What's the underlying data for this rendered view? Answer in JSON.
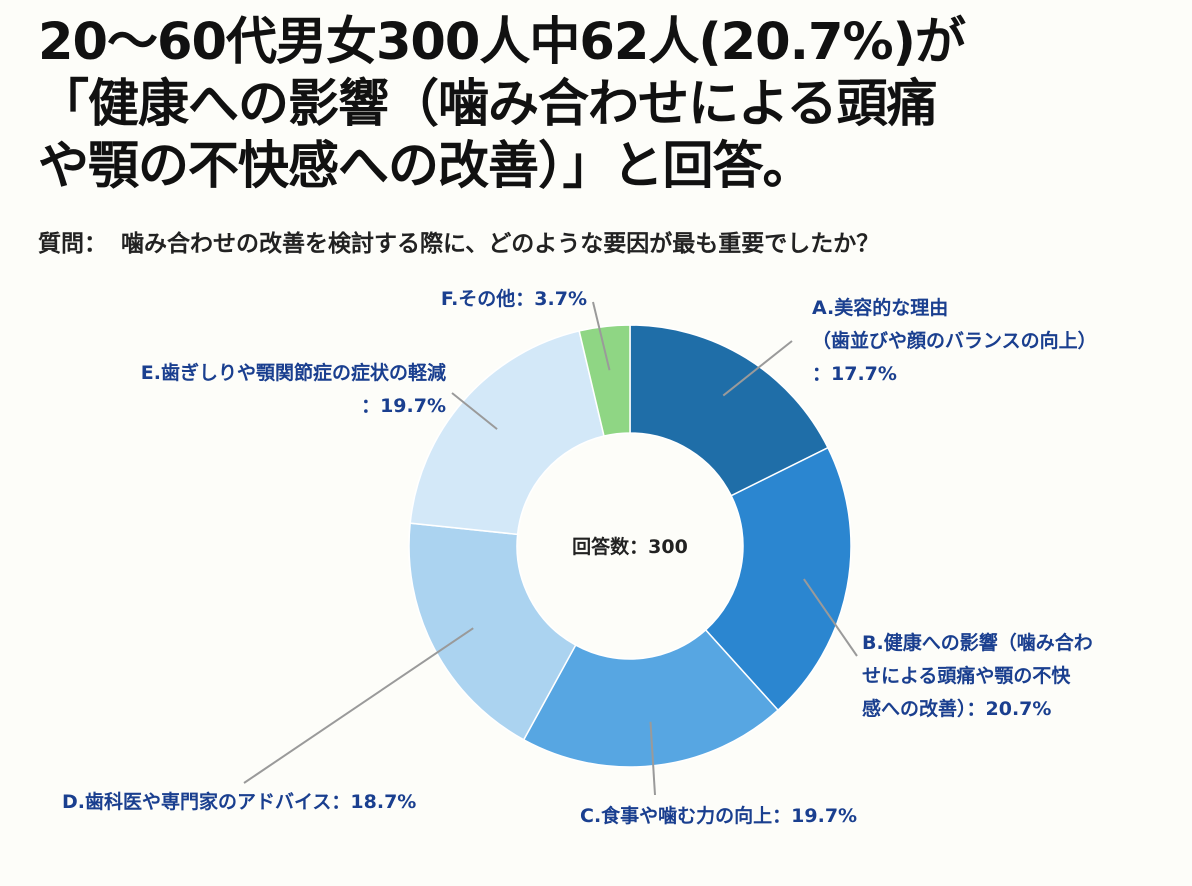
{
  "header": {
    "title_lines": [
      "20～60代男女300人中62人(20.7%)が",
      "「健康への影響（噛み合わせによる頭痛",
      "や顎の不快感への改善）」と回答。"
    ],
    "question_label": "質問：",
    "question_text": "噛み合わせの改善を検討する際に、どのような要因が最も重要でしたか？"
  },
  "chart_data": {
    "type": "pie",
    "variant": "donut",
    "center_label": "回答数：300",
    "total": 300,
    "slices": [
      {
        "id": "A",
        "label_lines": [
          "A.美容的な理由",
          "（歯並びや顔のバランスの向上）",
          "：17.7%"
        ],
        "value": 17.7,
        "color": "#1f6ea8"
      },
      {
        "id": "B",
        "label_lines": [
          "B.健康への影響（噛み合わ",
          "せによる頭痛や顎の不快",
          "感への改善）：20.7%"
        ],
        "value": 20.7,
        "color": "#2b86d0"
      },
      {
        "id": "C",
        "label_lines": [
          "C.食事や噛む力の向上：19.7%"
        ],
        "value": 19.7,
        "color": "#57a6e2"
      },
      {
        "id": "D",
        "label_lines": [
          "D.歯科医や専門家のアドバイス：18.7%"
        ],
        "value": 18.7,
        "color": "#abd3f0"
      },
      {
        "id": "E",
        "label_lines": [
          "E.歯ぎしりや顎関節症の症状の軽減",
          "：19.7%"
        ],
        "value": 19.7,
        "color": "#d3e8f8"
      },
      {
        "id": "F",
        "label_lines": [
          "F.その他：3.7%"
        ],
        "value": 3.7,
        "color": "#8fd684"
      }
    ],
    "label_color": "#1a3f8f",
    "center_label_color": "#222222",
    "leader_line_color": "#9a9a9a"
  }
}
